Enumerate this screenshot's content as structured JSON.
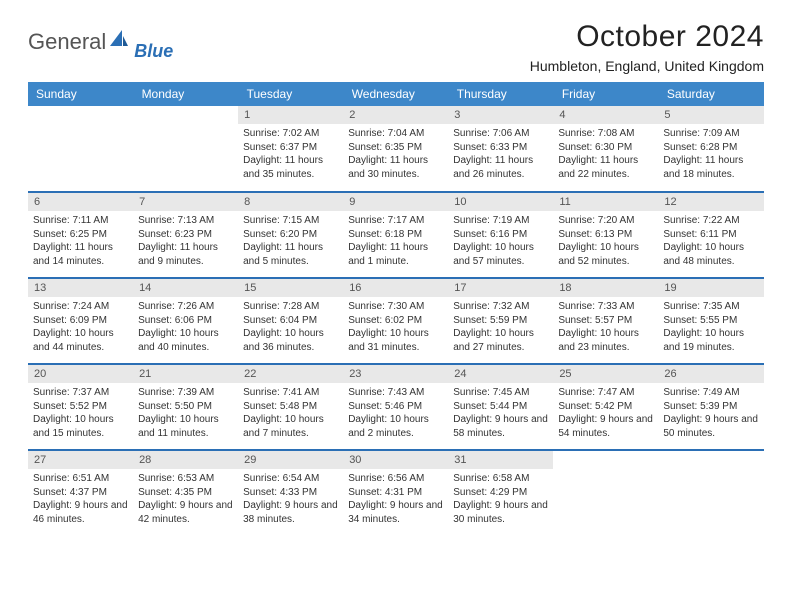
{
  "logo": {
    "word1": "General",
    "word2": "Blue"
  },
  "title": "October 2024",
  "subtitle": "Humbleton, England, United Kingdom",
  "colors": {
    "headerBg": "#3d87c9",
    "headerText": "#ffffff",
    "daynumBg": "#e8e8e8",
    "daynumText": "#555555",
    "border": "#2b6fb5",
    "body": "#333333"
  },
  "fontsize": {
    "title": 30,
    "subtitle": 14,
    "th": 12,
    "daynum": 11,
    "body": 10
  },
  "weekdays": [
    "Sunday",
    "Monday",
    "Tuesday",
    "Wednesday",
    "Thursday",
    "Friday",
    "Saturday"
  ],
  "weeks": [
    [
      null,
      null,
      {
        "n": "1",
        "sr": "Sunrise: 7:02 AM",
        "ss": "Sunset: 6:37 PM",
        "dl": "Daylight: 11 hours and 35 minutes."
      },
      {
        "n": "2",
        "sr": "Sunrise: 7:04 AM",
        "ss": "Sunset: 6:35 PM",
        "dl": "Daylight: 11 hours and 30 minutes."
      },
      {
        "n": "3",
        "sr": "Sunrise: 7:06 AM",
        "ss": "Sunset: 6:33 PM",
        "dl": "Daylight: 11 hours and 26 minutes."
      },
      {
        "n": "4",
        "sr": "Sunrise: 7:08 AM",
        "ss": "Sunset: 6:30 PM",
        "dl": "Daylight: 11 hours and 22 minutes."
      },
      {
        "n": "5",
        "sr": "Sunrise: 7:09 AM",
        "ss": "Sunset: 6:28 PM",
        "dl": "Daylight: 11 hours and 18 minutes."
      }
    ],
    [
      {
        "n": "6",
        "sr": "Sunrise: 7:11 AM",
        "ss": "Sunset: 6:25 PM",
        "dl": "Daylight: 11 hours and 14 minutes."
      },
      {
        "n": "7",
        "sr": "Sunrise: 7:13 AM",
        "ss": "Sunset: 6:23 PM",
        "dl": "Daylight: 11 hours and 9 minutes."
      },
      {
        "n": "8",
        "sr": "Sunrise: 7:15 AM",
        "ss": "Sunset: 6:20 PM",
        "dl": "Daylight: 11 hours and 5 minutes."
      },
      {
        "n": "9",
        "sr": "Sunrise: 7:17 AM",
        "ss": "Sunset: 6:18 PM",
        "dl": "Daylight: 11 hours and 1 minute."
      },
      {
        "n": "10",
        "sr": "Sunrise: 7:19 AM",
        "ss": "Sunset: 6:16 PM",
        "dl": "Daylight: 10 hours and 57 minutes."
      },
      {
        "n": "11",
        "sr": "Sunrise: 7:20 AM",
        "ss": "Sunset: 6:13 PM",
        "dl": "Daylight: 10 hours and 52 minutes."
      },
      {
        "n": "12",
        "sr": "Sunrise: 7:22 AM",
        "ss": "Sunset: 6:11 PM",
        "dl": "Daylight: 10 hours and 48 minutes."
      }
    ],
    [
      {
        "n": "13",
        "sr": "Sunrise: 7:24 AM",
        "ss": "Sunset: 6:09 PM",
        "dl": "Daylight: 10 hours and 44 minutes."
      },
      {
        "n": "14",
        "sr": "Sunrise: 7:26 AM",
        "ss": "Sunset: 6:06 PM",
        "dl": "Daylight: 10 hours and 40 minutes."
      },
      {
        "n": "15",
        "sr": "Sunrise: 7:28 AM",
        "ss": "Sunset: 6:04 PM",
        "dl": "Daylight: 10 hours and 36 minutes."
      },
      {
        "n": "16",
        "sr": "Sunrise: 7:30 AM",
        "ss": "Sunset: 6:02 PM",
        "dl": "Daylight: 10 hours and 31 minutes."
      },
      {
        "n": "17",
        "sr": "Sunrise: 7:32 AM",
        "ss": "Sunset: 5:59 PM",
        "dl": "Daylight: 10 hours and 27 minutes."
      },
      {
        "n": "18",
        "sr": "Sunrise: 7:33 AM",
        "ss": "Sunset: 5:57 PM",
        "dl": "Daylight: 10 hours and 23 minutes."
      },
      {
        "n": "19",
        "sr": "Sunrise: 7:35 AM",
        "ss": "Sunset: 5:55 PM",
        "dl": "Daylight: 10 hours and 19 minutes."
      }
    ],
    [
      {
        "n": "20",
        "sr": "Sunrise: 7:37 AM",
        "ss": "Sunset: 5:52 PM",
        "dl": "Daylight: 10 hours and 15 minutes."
      },
      {
        "n": "21",
        "sr": "Sunrise: 7:39 AM",
        "ss": "Sunset: 5:50 PM",
        "dl": "Daylight: 10 hours and 11 minutes."
      },
      {
        "n": "22",
        "sr": "Sunrise: 7:41 AM",
        "ss": "Sunset: 5:48 PM",
        "dl": "Daylight: 10 hours and 7 minutes."
      },
      {
        "n": "23",
        "sr": "Sunrise: 7:43 AM",
        "ss": "Sunset: 5:46 PM",
        "dl": "Daylight: 10 hours and 2 minutes."
      },
      {
        "n": "24",
        "sr": "Sunrise: 7:45 AM",
        "ss": "Sunset: 5:44 PM",
        "dl": "Daylight: 9 hours and 58 minutes."
      },
      {
        "n": "25",
        "sr": "Sunrise: 7:47 AM",
        "ss": "Sunset: 5:42 PM",
        "dl": "Daylight: 9 hours and 54 minutes."
      },
      {
        "n": "26",
        "sr": "Sunrise: 7:49 AM",
        "ss": "Sunset: 5:39 PM",
        "dl": "Daylight: 9 hours and 50 minutes."
      }
    ],
    [
      {
        "n": "27",
        "sr": "Sunrise: 6:51 AM",
        "ss": "Sunset: 4:37 PM",
        "dl": "Daylight: 9 hours and 46 minutes."
      },
      {
        "n": "28",
        "sr": "Sunrise: 6:53 AM",
        "ss": "Sunset: 4:35 PM",
        "dl": "Daylight: 9 hours and 42 minutes."
      },
      {
        "n": "29",
        "sr": "Sunrise: 6:54 AM",
        "ss": "Sunset: 4:33 PM",
        "dl": "Daylight: 9 hours and 38 minutes."
      },
      {
        "n": "30",
        "sr": "Sunrise: 6:56 AM",
        "ss": "Sunset: 4:31 PM",
        "dl": "Daylight: 9 hours and 34 minutes."
      },
      {
        "n": "31",
        "sr": "Sunrise: 6:58 AM",
        "ss": "Sunset: 4:29 PM",
        "dl": "Daylight: 9 hours and 30 minutes."
      },
      null,
      null
    ]
  ]
}
